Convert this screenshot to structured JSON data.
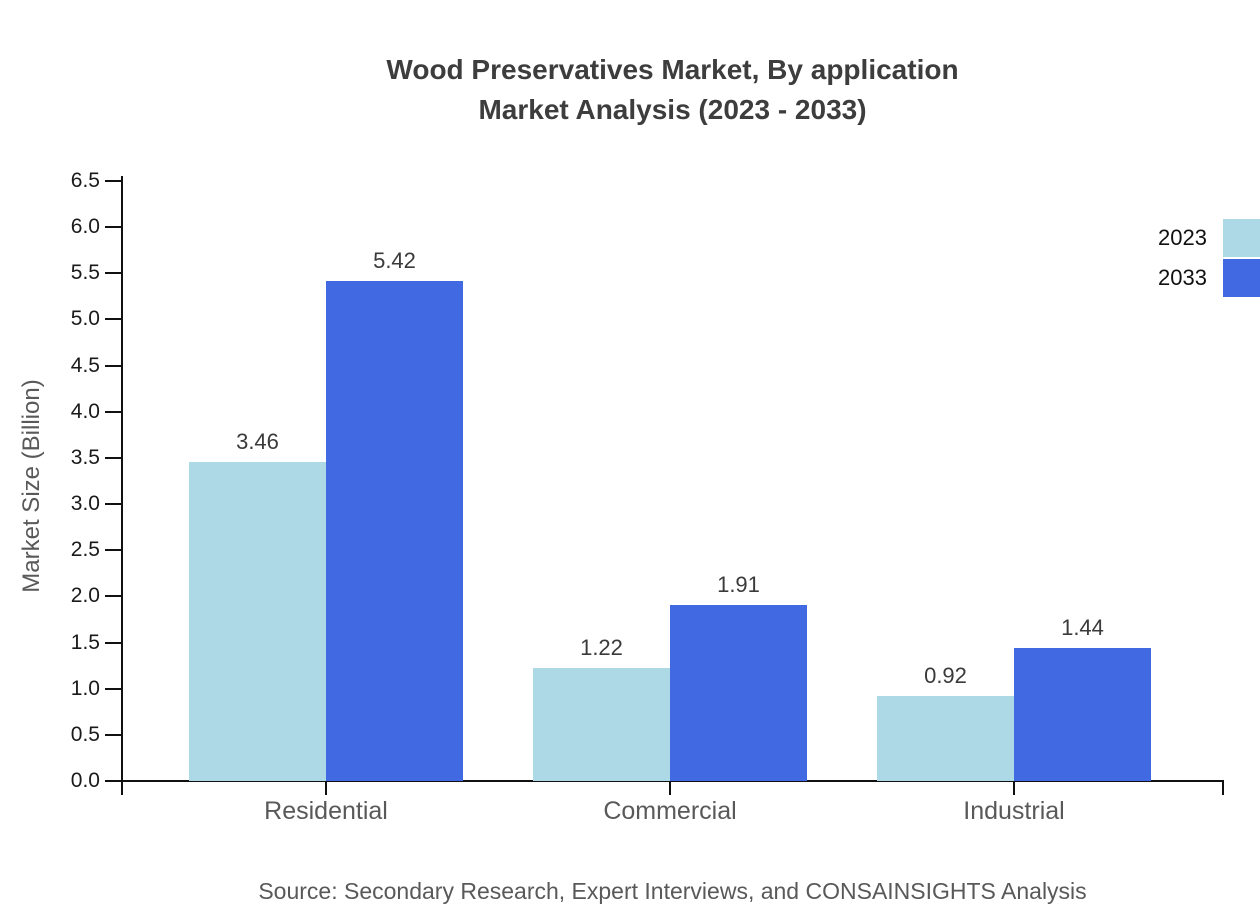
{
  "title": {
    "line1": "Wood Preservatives Market, By application",
    "line2": "Market Analysis (2023 - 2033)"
  },
  "source": "Source: Secondary Research, Expert Interviews, and CONSAINSIGHTS Analysis",
  "chart_data": {
    "type": "bar",
    "categories": [
      "Residential",
      "Commercial",
      "Industrial"
    ],
    "series": [
      {
        "name": "2023",
        "color": "#ADD8E6",
        "values": [
          3.46,
          1.22,
          0.92
        ]
      },
      {
        "name": "2033",
        "color": "#4169E1",
        "values": [
          5.42,
          1.91,
          1.44
        ]
      }
    ],
    "title": "Wood Preservatives Market, By application Market Analysis (2023 - 2033)",
    "xlabel": "",
    "ylabel": "Market Size (Billion)",
    "ylim": [
      0,
      6.5
    ],
    "ytick_step": 0.5,
    "grid": false,
    "legend_position": "right-top",
    "value_labels": [
      "3.46",
      "1.22",
      "0.92",
      "5.42",
      "1.91",
      "1.44"
    ],
    "ytick_labels": [
      "0.0",
      "0.5",
      "1.0",
      "1.5",
      "2.0",
      "2.5",
      "3.0",
      "3.5",
      "4.0",
      "4.5",
      "5.0",
      "5.5",
      "6.0",
      "6.5"
    ]
  }
}
